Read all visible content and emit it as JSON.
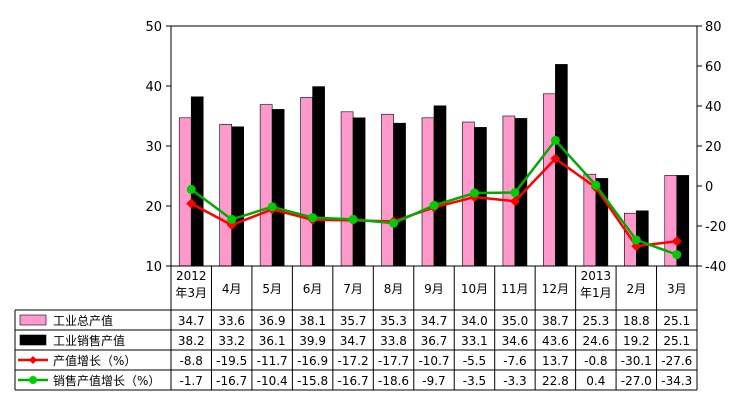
{
  "chart_data": {
    "type": "bar",
    "categories": [
      "2012\n年3月",
      "4月",
      "5月",
      "6月",
      "7月",
      "8月",
      "9月",
      "10月",
      "11月",
      "12月",
      "2013\n年1月",
      "2月",
      "3月"
    ],
    "y_left": {
      "min": 10,
      "max": 50,
      "ticks": [
        10,
        20,
        30,
        40,
        50
      ]
    },
    "y_right": {
      "min": -40,
      "max": 80,
      "ticks": [
        -40,
        -20,
        0,
        20,
        40,
        60,
        80
      ]
    },
    "grid": false,
    "legend": "bottom-table",
    "series": [
      {
        "name": "工业总产值",
        "kind": "bar",
        "axis": "left",
        "color": "#ff99cc",
        "values": [
          34.7,
          33.6,
          36.9,
          38.1,
          35.7,
          35.3,
          34.7,
          34.0,
          35.0,
          38.7,
          25.3,
          18.8,
          25.1
        ],
        "labels": [
          "34.7",
          "33.6",
          "36.9",
          "38.1",
          "35.7",
          "35.3",
          "34.7",
          "34.0",
          "35.0",
          "38.7",
          "25.3",
          "18.8",
          "25.1"
        ]
      },
      {
        "name": "工业销售产值",
        "kind": "bar",
        "axis": "left",
        "color": "#000000",
        "values": [
          38.2,
          33.2,
          36.1,
          39.9,
          34.7,
          33.8,
          36.7,
          33.1,
          34.6,
          43.6,
          24.6,
          19.2,
          25.1
        ],
        "labels": [
          "38.2",
          "33.2",
          "36.1",
          "39.9",
          "34.7",
          "33.8",
          "36.7",
          "33.1",
          "34.6",
          "43.6",
          "24.6",
          "19.2",
          "25.1"
        ]
      },
      {
        "name": "产值增长（%）",
        "kind": "line",
        "axis": "right",
        "color": "#ff0000",
        "values": [
          -8.8,
          -19.5,
          -11.7,
          -16.9,
          -17.2,
          -17.7,
          -10.7,
          -5.5,
          -7.6,
          13.7,
          -0.8,
          -30.1,
          -27.6
        ],
        "labels": [
          "-8.8",
          "-19.5",
          "-11.7",
          "-16.9",
          "-17.2",
          "-17.7",
          "-10.7",
          "-5.5",
          "-7.6",
          "13.7",
          "-0.8",
          "-30.1",
          "-27.6"
        ]
      },
      {
        "name": "销售产值增长（%）",
        "kind": "line",
        "axis": "right",
        "color": "#00aa00",
        "values": [
          -1.7,
          -16.7,
          -10.4,
          -15.8,
          -16.7,
          -18.6,
          -9.7,
          -3.5,
          -3.3,
          22.8,
          0.4,
          -27.0,
          -34.3
        ],
        "labels": [
          "-1.7",
          "-16.7",
          "-10.4",
          "-15.8",
          "-16.7",
          "-18.6",
          "-9.7",
          "-3.5",
          "-3.3",
          "22.8",
          "0.4",
          "-27.0",
          "-34.3"
        ]
      }
    ]
  }
}
